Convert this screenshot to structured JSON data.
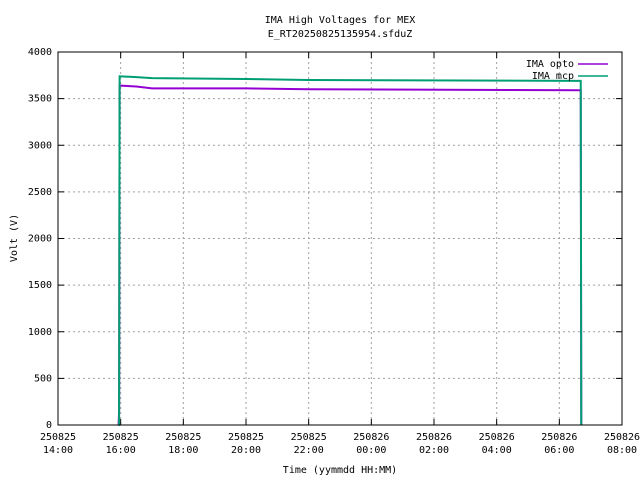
{
  "chart_data": {
    "type": "line",
    "title": "IMA High Voltages for MEX",
    "subtitle": "E_RT20250825135954.sfduZ",
    "xlabel": "Time (yymmdd HH:MM)",
    "ylabel": "Volt (V)",
    "x": [
      "250825 15:56",
      "250825 15:57",
      "250825 15:58",
      "250825 16:30",
      "250825 17:00",
      "250825 20:00",
      "250825 22:00",
      "250826 06:40",
      "250826 06:41",
      "250826 06:42"
    ],
    "series": [
      {
        "name": "IMA opto",
        "color": "#9400d3",
        "values": [
          0,
          150,
          3640,
          3630,
          3610,
          3610,
          3600,
          3590,
          3590,
          0
        ]
      },
      {
        "name": "IMA mcp",
        "color": "#009e73",
        "values": [
          0,
          0,
          3740,
          3730,
          3720,
          3710,
          3700,
          3690,
          3690,
          0
        ]
      }
    ],
    "xlim": [
      "250825 14:00",
      "250826 08:00"
    ],
    "xticks": [
      "250825 14:00",
      "250825 16:00",
      "250825 18:00",
      "250825 20:00",
      "250825 22:00",
      "250826 00:00",
      "250826 02:00",
      "250826 04:00",
      "250826 06:00",
      "250826 08:00"
    ],
    "ylim": [
      0,
      4000
    ],
    "yticks": [
      0,
      500,
      1000,
      1500,
      2000,
      2500,
      3000,
      3500,
      4000
    ],
    "grid": true,
    "legend": "top-right"
  }
}
